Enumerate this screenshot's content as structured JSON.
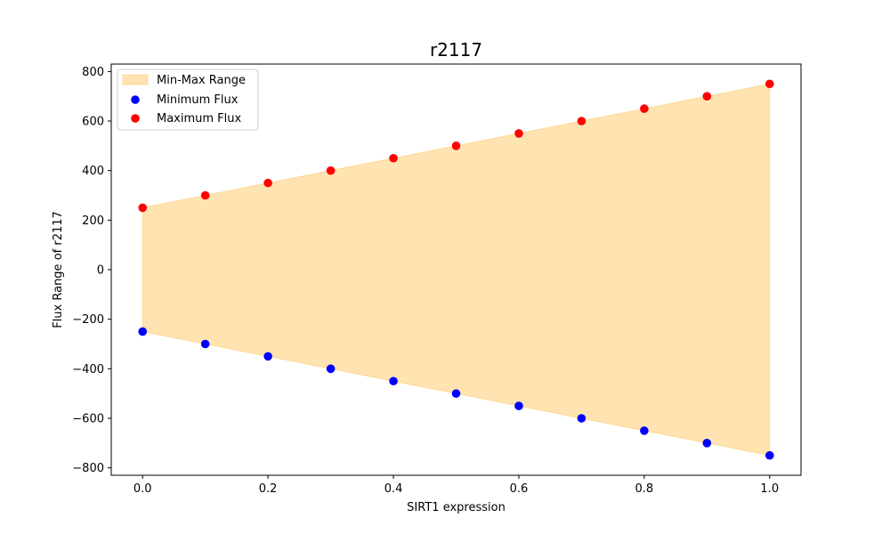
{
  "chart_data": {
    "type": "scatter",
    "title": "r2117",
    "xlabel": "SIRT1 expression",
    "ylabel": "Flux Range of r2117",
    "xlim": [
      -0.05,
      1.05
    ],
    "ylim": [
      -830,
      830
    ],
    "xticks": [
      0.0,
      0.2,
      0.4,
      0.6,
      0.8,
      1.0
    ],
    "xtick_labels": [
      "0.0",
      "0.2",
      "0.4",
      "0.6",
      "0.8",
      "1.0"
    ],
    "yticks": [
      -800,
      -600,
      -400,
      -200,
      0,
      200,
      400,
      600,
      800
    ],
    "ytick_labels": [
      "−800",
      "−600",
      "−400",
      "−200",
      "0",
      "200",
      "400",
      "600",
      "800"
    ],
    "x": [
      0.0,
      0.1,
      0.2,
      0.3,
      0.4,
      0.5,
      0.6,
      0.7,
      0.8,
      0.9,
      1.0
    ],
    "series": [
      {
        "name": "Minimum Flux",
        "color": "#0000ff",
        "values": [
          -250,
          -300,
          -350,
          -400,
          -450,
          -500,
          -550,
          -600,
          -650,
          -700,
          -750
        ]
      },
      {
        "name": "Maximum Flux",
        "color": "#ff0000",
        "values": [
          250,
          300,
          350,
          400,
          450,
          500,
          550,
          600,
          650,
          700,
          750
        ]
      }
    ],
    "fill": {
      "name": "Min-Max Range",
      "color": "#ffa500",
      "opacity": 0.3,
      "edge_color": "#ffa500"
    },
    "legend": {
      "placement": "top-left",
      "entries": [
        "Min-Max Range",
        "Minimum Flux",
        "Maximum Flux"
      ]
    },
    "grid": false
  }
}
